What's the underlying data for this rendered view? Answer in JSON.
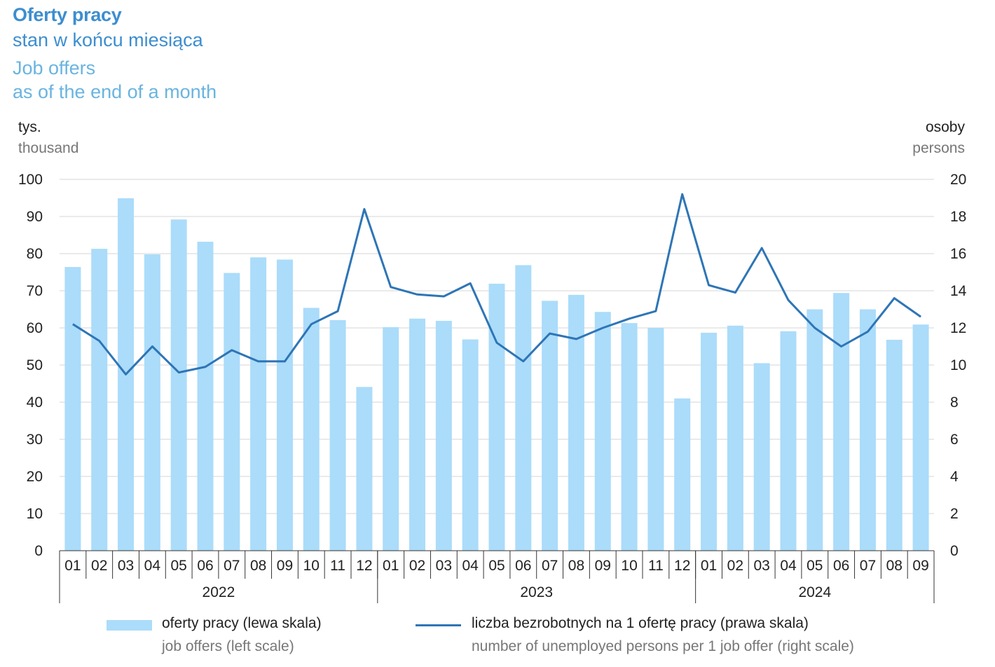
{
  "title": "Oferty pracy",
  "subtitle_pl": "stan w końcu miesiąca",
  "title_en": "Job offers",
  "subtitle_en": "as of the end of a month",
  "left_unit_pl": "tys.",
  "left_unit_en": "thousand",
  "right_unit_pl": "osoby",
  "right_unit_en": "persons",
  "legend": {
    "bars_pl": "oferty pracy (lewa skala)",
    "bars_en": "job offers (left scale)",
    "line_pl": "liczba bezrobotnych na 1 ofertę pracy (prawa skala)",
    "line_en": "number of unemployed persons per 1 job offer (right scale)"
  },
  "colors": {
    "bars": "#abdcfa",
    "line": "#2e75b6",
    "title": "#3d8ecf",
    "title_en": "#6ab4e0"
  },
  "chart_data": {
    "type": "bar",
    "categories": [
      "01",
      "02",
      "03",
      "04",
      "05",
      "06",
      "07",
      "08",
      "09",
      "10",
      "11",
      "12",
      "01",
      "02",
      "03",
      "04",
      "05",
      "06",
      "07",
      "08",
      "09",
      "10",
      "11",
      "12",
      "01",
      "02",
      "03",
      "04",
      "05",
      "06",
      "07",
      "08",
      "09"
    ],
    "years": [
      {
        "label": "2022",
        "count": 12
      },
      {
        "label": "2023",
        "count": 12
      },
      {
        "label": "2024",
        "count": 9
      }
    ],
    "series": [
      {
        "name": "oferty pracy (lewa skala)",
        "type": "bar",
        "axis": "left",
        "values": [
          76.4,
          81.3,
          94.9,
          79.8,
          89.2,
          83.2,
          74.8,
          79.0,
          78.4,
          65.4,
          62.1,
          44.1,
          60.2,
          62.5,
          61.9,
          56.9,
          71.9,
          76.9,
          67.3,
          68.9,
          64.3,
          61.3,
          60.0,
          41.0,
          58.7,
          60.6,
          50.5,
          59.1,
          65.0,
          69.4,
          65.0,
          56.8,
          60.9
        ]
      },
      {
        "name": "liczba bezrobotnych na 1 ofertę pracy (prawa skala)",
        "type": "line",
        "axis": "right",
        "values": [
          12.2,
          11.3,
          9.5,
          11.0,
          9.6,
          9.9,
          10.8,
          10.2,
          10.2,
          12.2,
          12.9,
          18.4,
          14.2,
          13.8,
          13.7,
          14.4,
          11.2,
          10.2,
          11.7,
          11.4,
          12.0,
          12.5,
          12.9,
          19.2,
          14.3,
          13.9,
          16.3,
          13.5,
          12.0,
          11.0,
          11.8,
          13.6,
          12.6
        ]
      }
    ],
    "ylim_left": [
      0,
      100
    ],
    "yticks_left": [
      0,
      10,
      20,
      30,
      40,
      50,
      60,
      70,
      80,
      90,
      100
    ],
    "ylim_right": [
      0,
      20
    ],
    "yticks_right": [
      0,
      2,
      4,
      6,
      8,
      10,
      12,
      14,
      16,
      18,
      20
    ],
    "grid": true,
    "legend_position": "bottom"
  }
}
